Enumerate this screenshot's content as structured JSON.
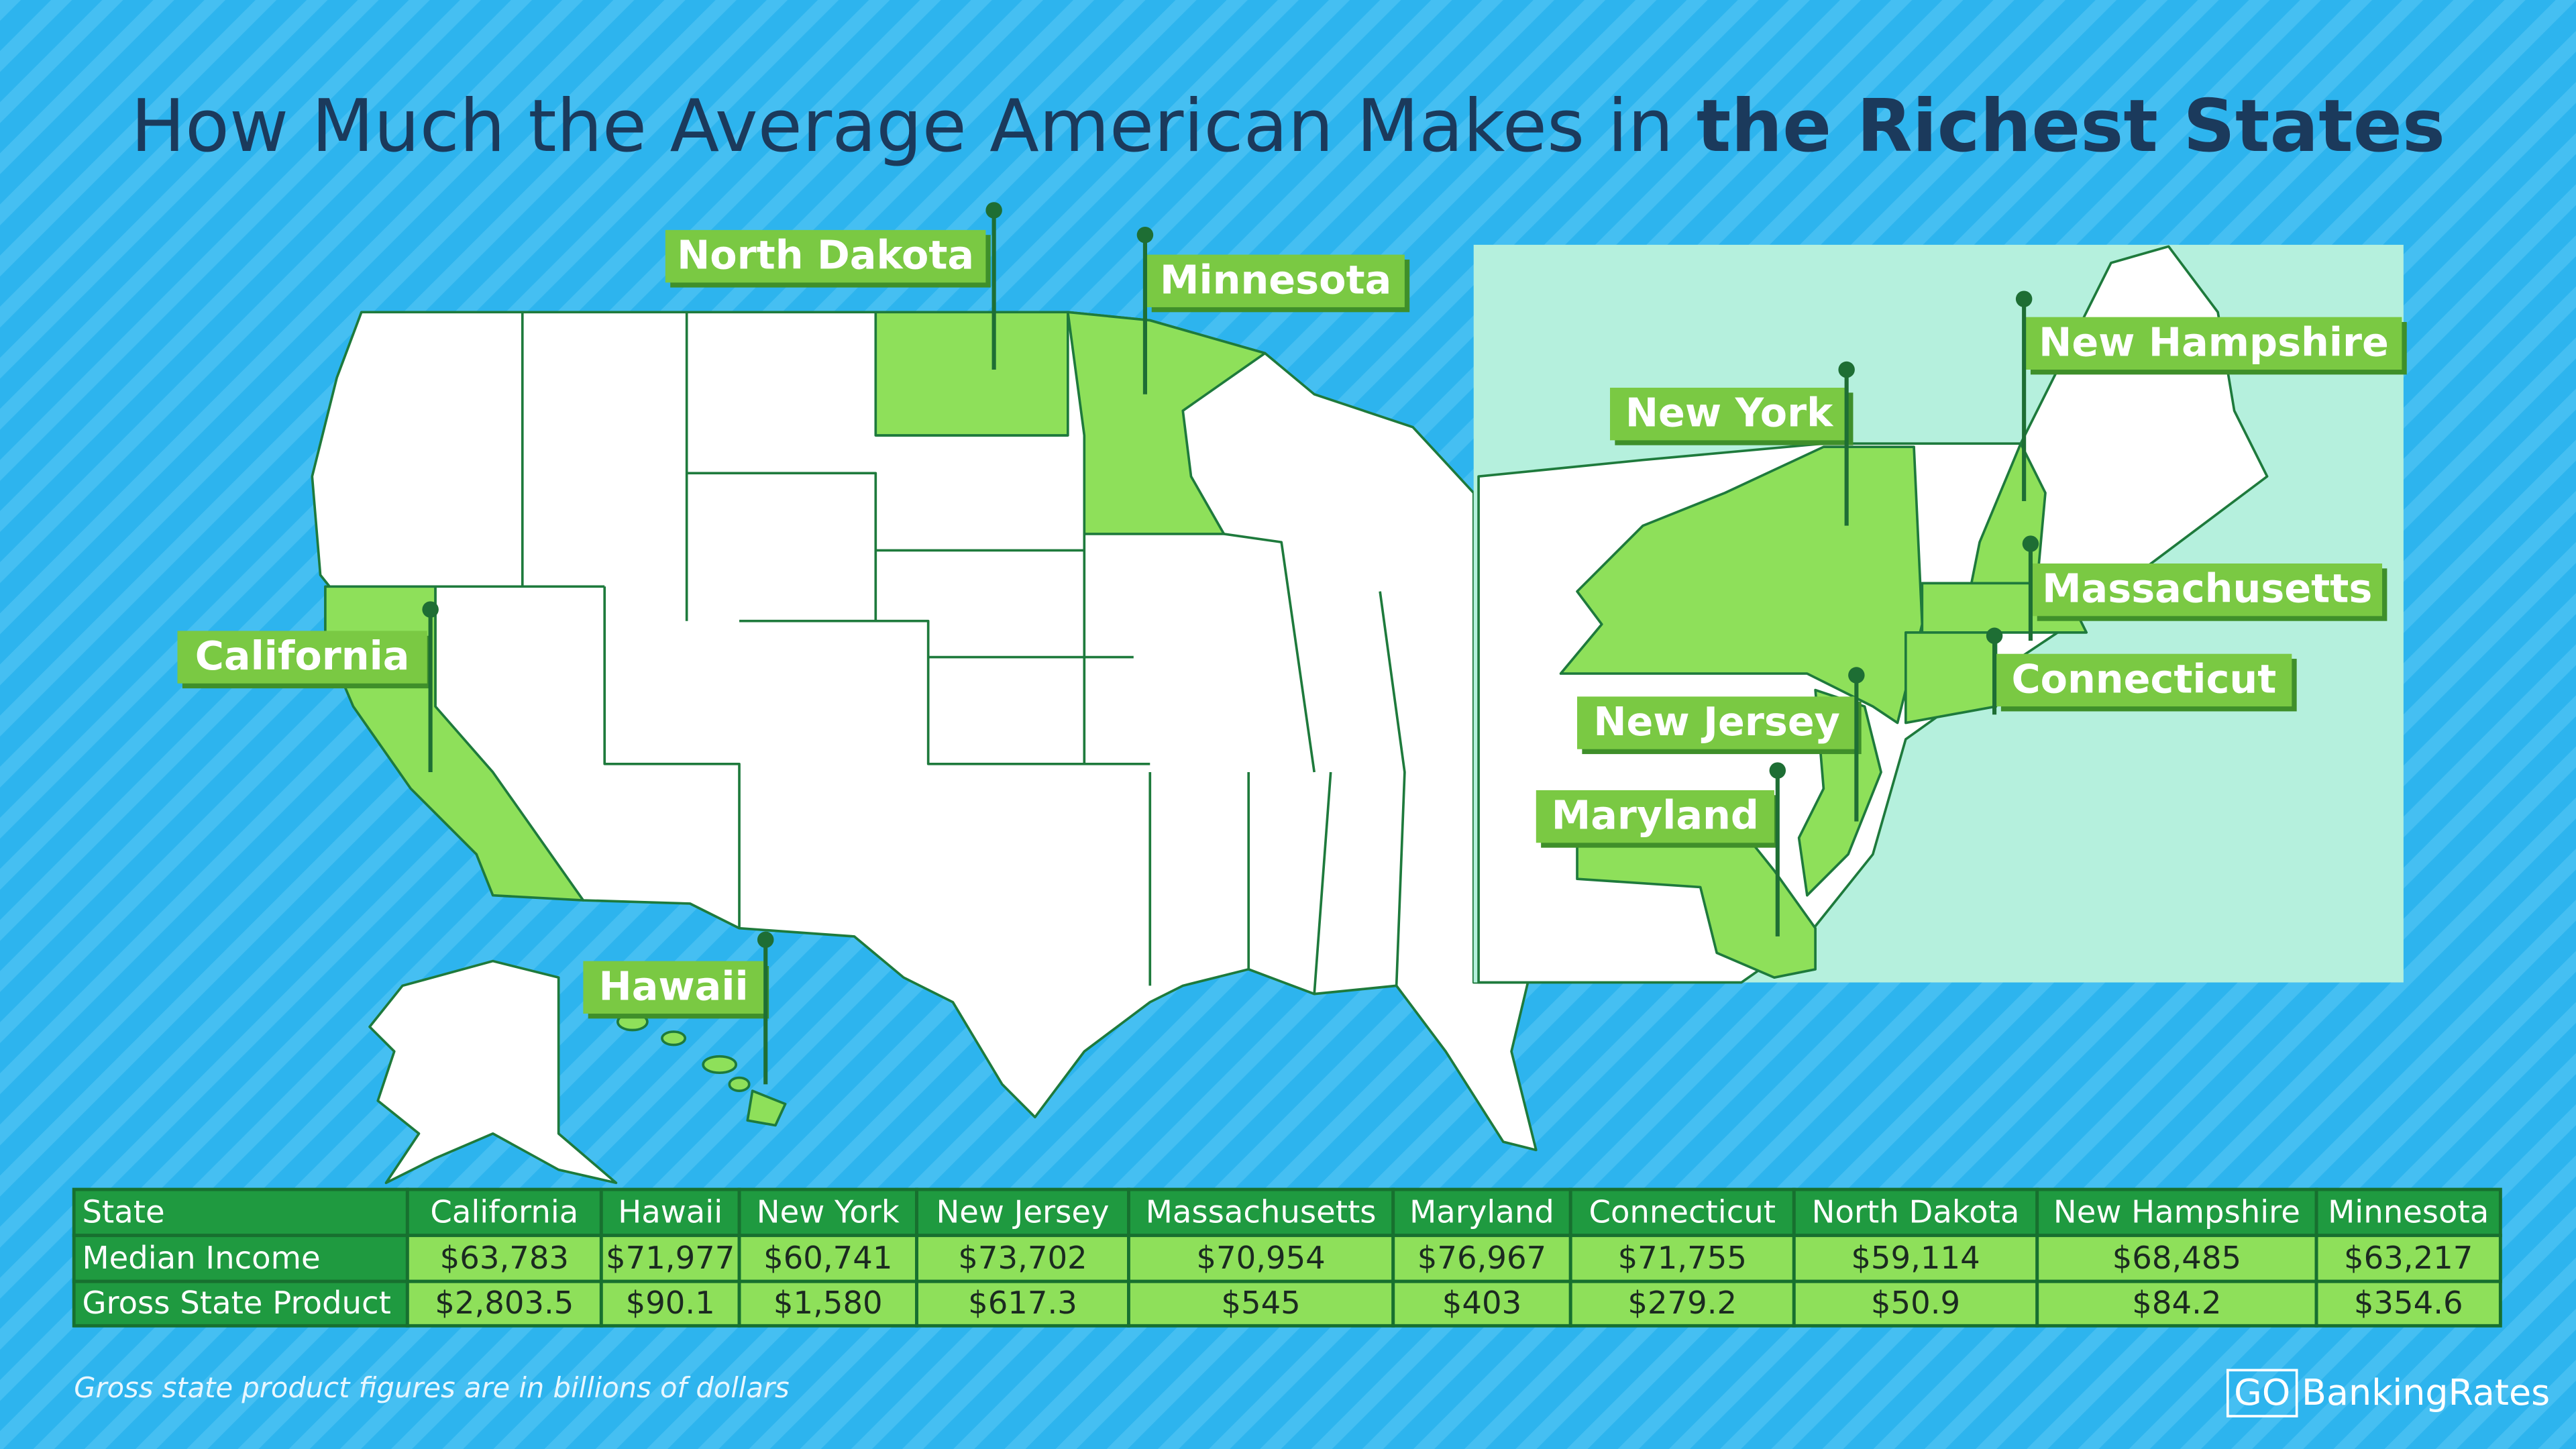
{
  "title": {
    "regular": "How Much the Average American Makes in",
    "bold": "the Richest States"
  },
  "map_labels": [
    "North Dakota",
    "Minnesota",
    "California",
    "Hawaii",
    "New York",
    "New Hampshire",
    "Massachusetts",
    "Connecticut",
    "New Jersey",
    "Maryland"
  ],
  "table": {
    "header": [
      "State",
      "California",
      "Hawaii",
      "New York",
      "New Jersey",
      "Massachusetts",
      "Maryland",
      "Connecticut",
      "North Dakota",
      "New Hampshire",
      "Minnesota"
    ],
    "rows": [
      [
        "Median Income",
        "$63,783",
        "$71,977",
        "$60,741",
        "$73,702",
        "$70,954",
        "$76,967",
        "$71,755",
        "$59,114",
        "$68,485",
        "$63,217"
      ],
      [
        "Gross State Product",
        "$2,803.5",
        "$90.1",
        "$1,580",
        "$617.3",
        "$545",
        "$403",
        "$279.2",
        "$50.9",
        "$84.2",
        "$354.6"
      ]
    ]
  },
  "footnote": "Gross state product figures are in billions of dollars",
  "logo": {
    "mark": "GO",
    "name": "BankingRates"
  }
}
